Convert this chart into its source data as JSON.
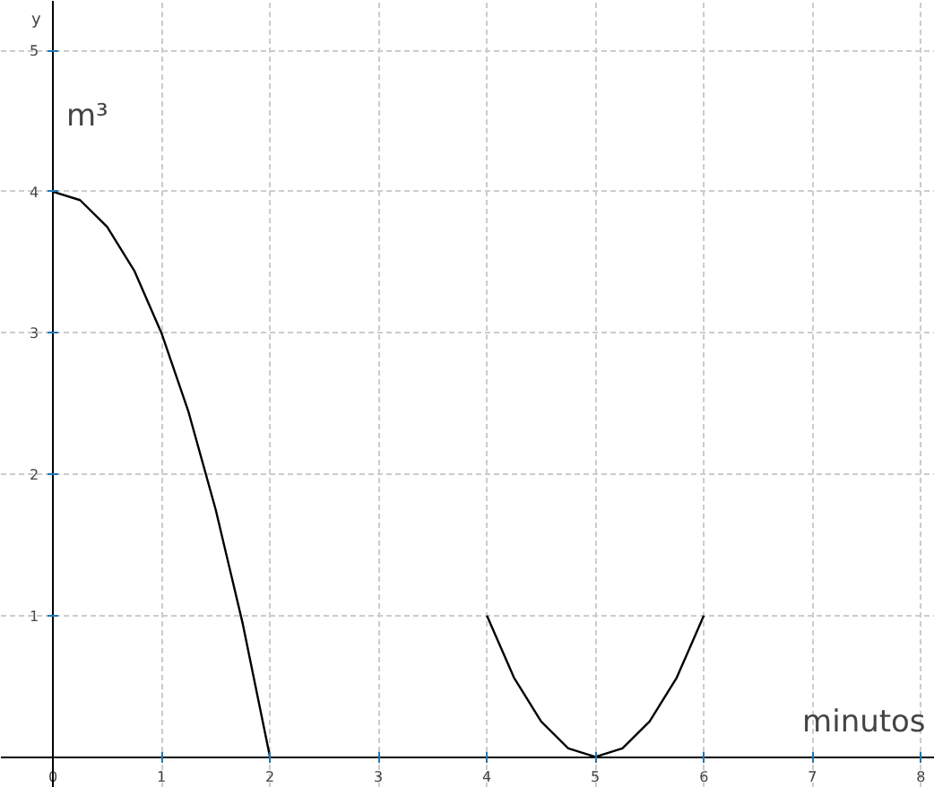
{
  "chart_data": {
    "type": "line",
    "ylabel": "y",
    "annotations": [
      "m³",
      "minutos"
    ],
    "xlim": [
      -0.48,
      8.13
    ],
    "ylim": [
      -0.22,
      5.35
    ],
    "xticks": [
      0,
      1,
      2,
      3,
      4,
      5,
      6,
      7,
      8
    ],
    "yticks": [
      1,
      2,
      3,
      4,
      5
    ],
    "grid": true,
    "series": [
      {
        "color": "#000000",
        "x": [
          0,
          0.25,
          0.5,
          0.75,
          1,
          1.25,
          1.5,
          1.75,
          2
        ],
        "values": [
          4,
          3.94,
          3.75,
          3.44,
          3,
          2.44,
          1.75,
          0.94,
          0
        ]
      },
      {
        "color": "#000000",
        "x": [
          4,
          4.25,
          4.5,
          4.75,
          5,
          5.25,
          5.5,
          5.75,
          6
        ],
        "values": [
          1,
          0.56,
          0.25,
          0.06,
          0,
          0.06,
          0.25,
          0.56,
          1
        ]
      }
    ]
  }
}
